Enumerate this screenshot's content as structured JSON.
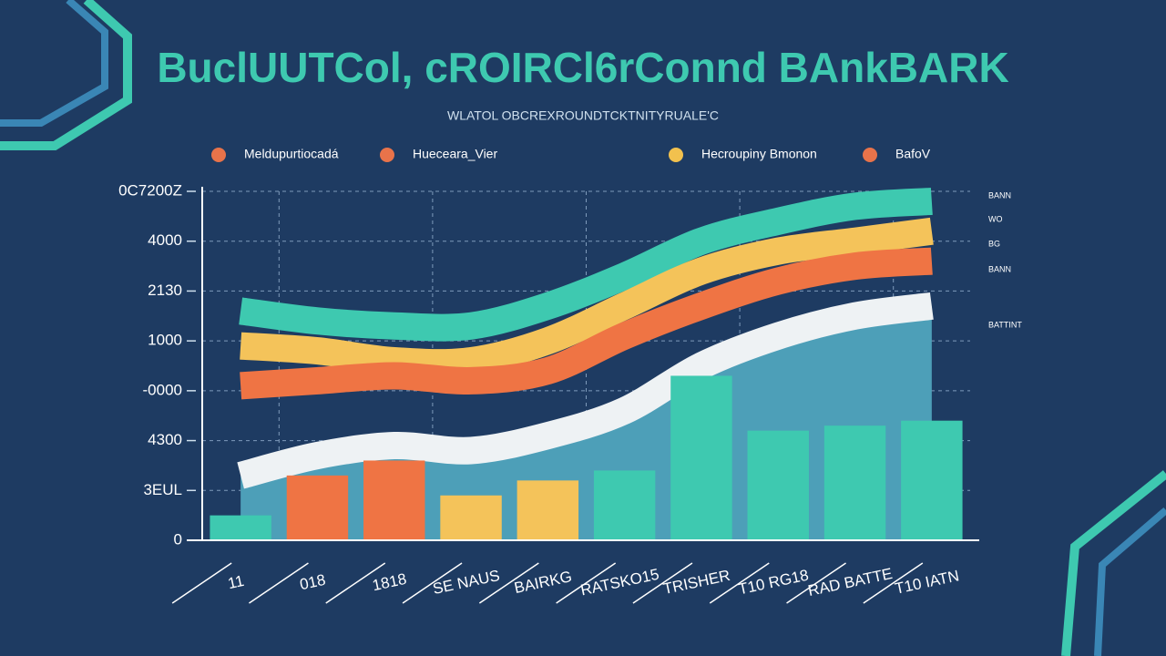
{
  "chart_data": {
    "type": "line",
    "title": "BuclUUTCol, cROIRCl6rConnd BAnkBARK",
    "subtitle": "WLATOL OBCREXROUNDTCKTNITYRUALE'C",
    "categories": [
      "11",
      "018",
      "1818",
      "SE NAUS",
      "BAIRKG",
      "RATSKO15",
      "TRISHER",
      "T10 RG18",
      "RAD BATTE",
      "T10 IATN"
    ],
    "series": [
      {
        "name": "Meldupurtiocadá",
        "color": "#3ec9b0",
        "marker_color": "#e8734a",
        "type": "line",
        "values": [
          4.6,
          4.4,
          4.3,
          4.3,
          4.7,
          5.3,
          6.0,
          6.4,
          6.7,
          6.8
        ]
      },
      {
        "name": "Hueceara_Vier",
        "color": "#f4c35a",
        "marker_color": "#e8734a",
        "type": "line",
        "values": [
          3.9,
          3.8,
          3.6,
          3.6,
          4.0,
          4.7,
          5.4,
          5.8,
          6.0,
          6.2
        ]
      },
      {
        "name": "Hecroupiny Bmonon",
        "color": "#ef7444",
        "marker_color": "#f2c14e",
        "type": "line",
        "values": [
          3.1,
          3.2,
          3.3,
          3.2,
          3.4,
          4.1,
          4.7,
          5.2,
          5.5,
          5.6
        ]
      },
      {
        "name": "BafoV",
        "color": "#eef2f4",
        "marker_color": "#e8734a",
        "type": "area",
        "area_color": "#4d9fb8",
        "values": [
          1.3,
          1.7,
          1.9,
          1.8,
          2.1,
          2.6,
          3.5,
          4.1,
          4.5,
          4.7
        ]
      },
      {
        "type": "bar",
        "colors": [
          "#3ec9b0",
          "#ef7444",
          "#ef7444",
          "#f4c35a",
          "#f4c35a",
          "#3ec9b0",
          "#3ec9b0",
          "#3ec9b0",
          "#3ec9b0",
          "#3ec9b0"
        ],
        "values": [
          0.5,
          1.3,
          1.6,
          0.9,
          1.2,
          1.4,
          3.3,
          2.2,
          2.3,
          2.4
        ]
      }
    ],
    "ylim": [
      0,
      7
    ],
    "yticks": [
      {
        "value": 0,
        "label": "0"
      },
      {
        "value": 1,
        "label": "3EUL"
      },
      {
        "value": 2,
        "label": "4300"
      },
      {
        "value": 3,
        "label": "-0000"
      },
      {
        "value": 4,
        "label": "1000"
      },
      {
        "value": 5,
        "label": "2130"
      },
      {
        "value": 6,
        "label": "4000"
      },
      {
        "value": 7,
        "label": "0C7200Z"
      }
    ],
    "grid": true,
    "right_labels": [
      "BANN",
      "WO",
      "BG",
      "BANN",
      "BATTINT"
    ]
  }
}
